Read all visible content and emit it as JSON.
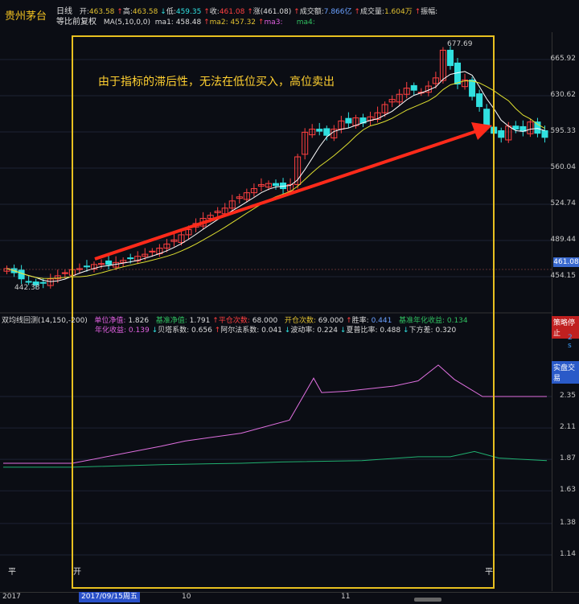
{
  "stock": {
    "name": "贵州茅台",
    "period": "日线",
    "adjust": "等比前复权"
  },
  "quote": {
    "open_label": "开:",
    "open": "463.58",
    "high_label": "高:",
    "high": "463.58",
    "low_label": "低:",
    "low": "459.35",
    "close_label": "收:",
    "close": "461.08",
    "change_label": "涨(461.08)",
    "turnover_label": "成交额:",
    "turnover": "7.866亿",
    "volume_label": "成交量:",
    "volume": "1.604万",
    "amplitude_label": "振幅:"
  },
  "ma": {
    "label": "MA(5,10,0,0)",
    "ma1_label": "ma1:",
    "ma1": "458.48",
    "ma2_label": "ma2:",
    "ma2": "457.32",
    "ma3_label": "ma3:",
    "ma4_label": "ma4:"
  },
  "annotation": "由于指标的滞后性，无法在低位买入，高位卖出",
  "price_labels": {
    "high": "677.69",
    "low": "442.38",
    "last": "461.08"
  },
  "price_axis": [
    "665.92",
    "630.62",
    "595.33",
    "560.04",
    "524.74",
    "489.44",
    "454.15"
  ],
  "indicator": {
    "name": "双均线回测(14,150,-200)",
    "unit_nav_label": "单位净值:",
    "unit_nav": "1.826",
    "bench_nav_label": "基准净值:",
    "bench_nav": "1.791",
    "close_count_label": "平仓次数:",
    "close_count": "68.000",
    "open_count_label": "开仓次数:",
    "open_count": "69.000",
    "win_rate_label": "胜率:",
    "win_rate": "0.441",
    "bench_annual_label": "基准年化收益:",
    "bench_annual": "0.134",
    "annual_label": "年化收益:",
    "annual": "0.139",
    "beta_label": "贝塔系数:",
    "beta": "0.656",
    "alpha_label": "阿尔法系数:",
    "alpha": "0.041",
    "vol_label": "波动率:",
    "vol": "0.224",
    "sharpe_label": "夏普比率:",
    "sharpe": "0.488",
    "downside_label": "下方差:",
    "downside": "0.320"
  },
  "ind_axis": [
    "2.35",
    "2.11",
    "1.87",
    "1.63",
    "1.38",
    "1.14"
  ],
  "side": {
    "stop": "策略停止",
    "speed": "2 s",
    "live": "实盘交易"
  },
  "markers": {
    "flat_left": "平",
    "open": "开",
    "flat_right": "平"
  },
  "xaxis": {
    "year": "2017",
    "date": "2017/09/15周五",
    "m10": "10",
    "m11": "11"
  },
  "colors": {
    "up": "#ff4040",
    "down": "#30e0e0",
    "ma1": "#ffffff",
    "ma2": "#e0e030",
    "box": "#e8c020",
    "arrow": "#ff2a1a",
    "nav": "#e070e0",
    "bench": "#20b070"
  }
}
